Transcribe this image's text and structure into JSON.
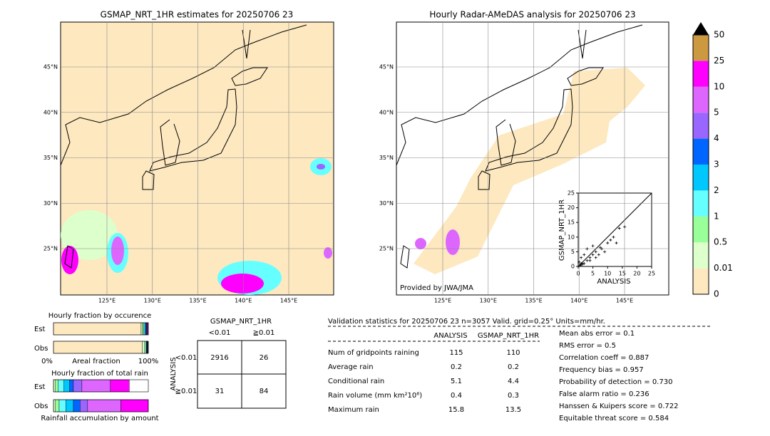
{
  "left_map": {
    "title": "GSMAP_NRT_1HR estimates for 20250706 23",
    "lat_labels": [
      "45°N",
      "40°N",
      "35°N",
      "30°N",
      "25°N"
    ],
    "lon_labels": [
      "125°E",
      "130°E",
      "135°E",
      "140°E",
      "145°E"
    ]
  },
  "right_map": {
    "title": "Hourly Radar-AMeDAS analysis for 20250706 23",
    "lat_labels": [
      "45°N",
      "40°N",
      "35°N",
      "30°N",
      "25°N"
    ],
    "lon_labels": [
      "125°E",
      "130°E",
      "135°E",
      "140°E",
      "145°E"
    ],
    "credit": "Provided by JWA/JMA",
    "scatter": {
      "type": "scatter",
      "x_label": "ANALYSIS",
      "y_label": "GSMAP_NRT_1HR",
      "xlim": [
        0,
        25
      ],
      "ylim": [
        0,
        25
      ],
      "xticks": [
        0,
        5,
        10,
        15,
        20,
        25
      ],
      "yticks": [
        0,
        5,
        10,
        15,
        20,
        25
      ],
      "x": [
        0,
        0.5,
        1,
        1,
        2,
        3,
        4,
        5,
        6,
        7,
        8,
        10,
        12,
        14,
        15.8,
        2,
        3,
        5,
        1,
        6,
        9,
        11,
        0.3,
        1.5,
        4,
        7.5,
        13
      ],
      "y": [
        0,
        0.3,
        0.5,
        1,
        1,
        2,
        3,
        4,
        5,
        4,
        6,
        8,
        10,
        13,
        13.5,
        4,
        6,
        7,
        3,
        3,
        5,
        9,
        1.5,
        0.8,
        2,
        6.5,
        8
      ]
    }
  },
  "colorbar": {
    "labels": [
      "0",
      "0.01",
      "0.5",
      "1",
      "2",
      "3",
      "4",
      "5",
      "10",
      "25",
      "50"
    ],
    "colors": [
      "#fde8c0",
      "#ddffcc",
      "#99ff99",
      "#66ffff",
      "#00c8ff",
      "#0066ff",
      "#9966ff",
      "#dd66ff",
      "#ff00ff",
      "#cc9940"
    ]
  },
  "occurrence": {
    "title": "Hourly fraction by occurence",
    "rows": [
      "Est",
      "Obs"
    ],
    "axis_labels": [
      "0%",
      "Areal fraction",
      "100%"
    ],
    "est": [
      92.4,
      1.2,
      1.5,
      1.2,
      0.9,
      0.8,
      0.5,
      0.6,
      0.6,
      0.3
    ],
    "obs": [
      93.6,
      2.4,
      1.2,
      0.8,
      0.5,
      0.4,
      0.3,
      0.4,
      0.3,
      0.1
    ]
  },
  "total_rain": {
    "title": "Hourly fraction of total rain",
    "rows": [
      "Est",
      "Obs"
    ],
    "footer": "Rainfall accumulation by amount",
    "est": [
      0,
      2,
      3,
      6,
      6,
      4,
      9,
      30,
      20,
      0
    ],
    "obs": [
      0,
      2,
      4,
      7,
      8,
      7,
      8,
      35,
      29,
      0
    ]
  },
  "contingency": {
    "title": "GSMAP_NRT_1HR",
    "columns": [
      "<0.01",
      "≧0.01"
    ],
    "row_title": "ANALYSIS",
    "rows": [
      "<0.01",
      "≧0.01"
    ],
    "cells": [
      [
        2916,
        26
      ],
      [
        31,
        84
      ]
    ]
  },
  "validation": {
    "header": "Validation statistics for 20250706 23  n=3057 Valid. grid=0.25° Units=mm/hr.",
    "columns": [
      "ANALYSIS",
      "GSMAP_NRT_1HR"
    ],
    "rows": [
      {
        "label": "Num of gridpoints raining",
        "values": [
          115,
          110
        ]
      },
      {
        "label": "Average rain",
        "values": [
          0.2,
          0.2
        ]
      },
      {
        "label": "Conditional rain",
        "values": [
          5.1,
          4.4
        ]
      },
      {
        "label": "Rain volume (mm km²10⁶)",
        "values": [
          0.4,
          0.3
        ]
      },
      {
        "label": "Maximum rain",
        "values": [
          15.8,
          13.5
        ]
      }
    ],
    "scores": [
      "Mean abs error =    0.1",
      "RMS error =    0.5",
      "Correlation coeff =  0.887",
      "Frequency bias =  0.957",
      "Probability of detection =  0.730",
      "False alarm ratio =  0.236",
      "Hanssen & Kuipers score =  0.722",
      "Equitable threat score =  0.584"
    ]
  }
}
